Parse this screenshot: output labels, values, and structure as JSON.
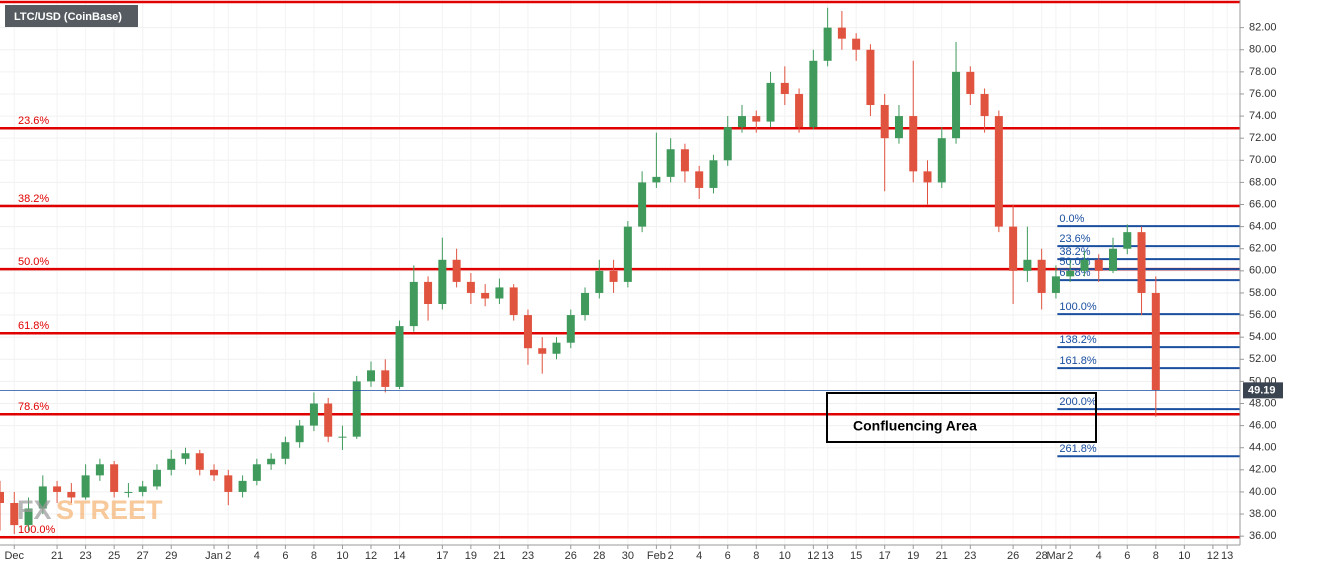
{
  "chart_data": {
    "type": "candlestick",
    "title": "LTC/USD (CoinBase)",
    "logo": {
      "fx": "FX",
      "street": "STREET"
    },
    "annotation": "Confluencing Area",
    "up_color": "#3f9a5c",
    "down_color": "#e0533f",
    "grid": true,
    "xlim": [
      -4,
      82.9
    ],
    "ylim": [
      35.2,
      84.5
    ],
    "xticks": [
      {
        "value": -3,
        "label": "Dec"
      },
      {
        "value": 0,
        "label": "21"
      },
      {
        "value": 2,
        "label": "23"
      },
      {
        "value": 4,
        "label": "25"
      },
      {
        "value": 6,
        "label": "27"
      },
      {
        "value": 8,
        "label": "29"
      },
      {
        "value": 11,
        "label": "Jan"
      },
      {
        "value": 12,
        "label": "2"
      },
      {
        "value": 14,
        "label": "4"
      },
      {
        "value": 16,
        "label": "6"
      },
      {
        "value": 18,
        "label": "8"
      },
      {
        "value": 20,
        "label": "10"
      },
      {
        "value": 22,
        "label": "12"
      },
      {
        "value": 24,
        "label": "14"
      },
      {
        "value": 27,
        "label": "17"
      },
      {
        "value": 29,
        "label": "19"
      },
      {
        "value": 31,
        "label": "21"
      },
      {
        "value": 33,
        "label": "23"
      },
      {
        "value": 36,
        "label": "26"
      },
      {
        "value": 38,
        "label": "28"
      },
      {
        "value": 40,
        "label": "30"
      },
      {
        "value": 42,
        "label": "Feb"
      },
      {
        "value": 43,
        "label": "2"
      },
      {
        "value": 45,
        "label": "4"
      },
      {
        "value": 47,
        "label": "6"
      },
      {
        "value": 49,
        "label": "8"
      },
      {
        "value": 51,
        "label": "10"
      },
      {
        "value": 53,
        "label": "12"
      },
      {
        "value": 54,
        "label": "13"
      },
      {
        "value": 56,
        "label": "15"
      },
      {
        "value": 58,
        "label": "17"
      },
      {
        "value": 60,
        "label": "19"
      },
      {
        "value": 62,
        "label": "21"
      },
      {
        "value": 64,
        "label": "23"
      },
      {
        "value": 67,
        "label": "26"
      },
      {
        "value": 69,
        "label": "28"
      },
      {
        "value": 70,
        "label": "Mar"
      },
      {
        "value": 71,
        "label": "2"
      },
      {
        "value": 73,
        "label": "4"
      },
      {
        "value": 75,
        "label": "6"
      },
      {
        "value": 77,
        "label": "8"
      },
      {
        "value": 79,
        "label": "10"
      },
      {
        "value": 81,
        "label": "12"
      },
      {
        "value": 82,
        "label": "13"
      }
    ],
    "yticks": [
      {
        "value": 36,
        "label": "36.00"
      },
      {
        "value": 38,
        "label": "38.00"
      },
      {
        "value": 40,
        "label": "40.00"
      },
      {
        "value": 42,
        "label": "42.00"
      },
      {
        "value": 44,
        "label": "44.00"
      },
      {
        "value": 46,
        "label": "46.00"
      },
      {
        "value": 48,
        "label": "48.00"
      },
      {
        "value": 50,
        "label": "50.00"
      },
      {
        "value": 52,
        "label": "52.00"
      },
      {
        "value": 54,
        "label": "54.00"
      },
      {
        "value": 56,
        "label": "56.00"
      },
      {
        "value": 58,
        "label": "58.00"
      },
      {
        "value": 60,
        "label": "60.00"
      },
      {
        "value": 62,
        "label": "62.00"
      },
      {
        "value": 64,
        "label": "64.00"
      },
      {
        "value": 66,
        "label": "66.00"
      },
      {
        "value": 68,
        "label": "68.00"
      },
      {
        "value": 70,
        "label": "70.00"
      },
      {
        "value": 72,
        "label": "72.00"
      },
      {
        "value": 74,
        "label": "74.00"
      },
      {
        "value": 76,
        "label": "76.00"
      },
      {
        "value": 78,
        "label": "78.00"
      },
      {
        "value": 80,
        "label": "80.00"
      },
      {
        "value": 82,
        "label": "82.00"
      }
    ],
    "x": [
      -4,
      -3,
      -2,
      -1,
      0,
      1,
      2,
      3,
      4,
      5,
      6,
      7,
      8,
      9,
      10,
      11,
      12,
      13,
      14,
      15,
      16,
      17,
      18,
      19,
      20,
      21,
      22,
      23,
      24,
      25,
      26,
      27,
      28,
      29,
      30,
      31,
      32,
      33,
      34,
      35,
      36,
      37,
      38,
      39,
      40,
      41,
      42,
      43,
      44,
      45,
      46,
      47,
      48,
      49,
      50,
      51,
      52,
      53,
      54,
      55,
      56,
      57,
      58,
      59,
      60,
      61,
      62,
      63,
      64,
      65,
      66,
      67,
      68,
      69,
      70,
      71,
      72,
      73,
      74,
      75,
      76,
      77
    ],
    "open": [
      40,
      39,
      37,
      38.5,
      40.5,
      40,
      39.5,
      41.5,
      42.5,
      40,
      40,
      40.5,
      42,
      43,
      43.5,
      42,
      41.5,
      40,
      41,
      42.5,
      43,
      44.5,
      46,
      48,
      45,
      45,
      50,
      51,
      49.5,
      55,
      59,
      57,
      61,
      59,
      58,
      57.5,
      58.5,
      56,
      53,
      52.5,
      53.5,
      56,
      58,
      60,
      59,
      64,
      68,
      68.5,
      71,
      69,
      67.5,
      70,
      73,
      74,
      73.5,
      77,
      76,
      73,
      79,
      82,
      81,
      80,
      75,
      72,
      74,
      69,
      68,
      72,
      78,
      76,
      74,
      64,
      60,
      61,
      58,
      59.5,
      60,
      61,
      60,
      62,
      63.5,
      58
    ],
    "high": [
      41,
      40,
      39.5,
      41.5,
      41,
      40.8,
      42.5,
      43,
      42.8,
      40.8,
      41,
      42.5,
      43.8,
      44,
      43.8,
      42.5,
      42,
      41.5,
      43,
      43.5,
      45,
      46.5,
      49,
      48.5,
      46,
      50.5,
      51.8,
      52,
      55.5,
      60.5,
      59.5,
      63,
      62,
      59.8,
      58.8,
      59.3,
      58.8,
      56.5,
      54,
      54,
      56.5,
      58.5,
      61,
      61,
      64.5,
      69,
      72.5,
      72,
      71.5,
      69.5,
      70.5,
      74,
      75,
      74.5,
      78,
      78.5,
      76.5,
      80,
      83.8,
      83.5,
      81.5,
      80.5,
      76,
      75,
      79,
      70,
      73,
      80.7,
      78.5,
      76.5,
      74.5,
      66,
      64,
      62,
      60.5,
      61,
      61.8,
      61.5,
      63,
      64.2,
      64,
      59.5
    ],
    "low": [
      36.5,
      36.2,
      36.5,
      38,
      39,
      39,
      39.3,
      41,
      39.5,
      39.5,
      39.6,
      40.2,
      41.5,
      42.5,
      41.5,
      41,
      38.8,
      39.5,
      40.6,
      42,
      42.5,
      44,
      45.5,
      44.5,
      43.8,
      44.8,
      49.5,
      49,
      49.3,
      54.5,
      55.5,
      56.5,
      58.5,
      57,
      56.8,
      57,
      55.5,
      51.5,
      50.7,
      52,
      53,
      55.5,
      57.5,
      58,
      58.5,
      63.5,
      67.5,
      68,
      68,
      66.5,
      67,
      69.5,
      72.5,
      72.5,
      73,
      75,
      72.5,
      72.8,
      78.5,
      80,
      79,
      74,
      67.2,
      71.5,
      68,
      66,
      67.5,
      71.5,
      75,
      72.5,
      63.5,
      57,
      59,
      56.5,
      57.5,
      59,
      59.5,
      59,
      59.8,
      61.5,
      56,
      46.8
    ],
    "close": [
      39,
      37,
      38.5,
      40.5,
      40,
      39.5,
      41.5,
      42.5,
      40,
      40,
      40.5,
      42,
      43,
      43.5,
      42,
      41.5,
      40,
      41,
      42.5,
      43,
      44.5,
      46,
      48,
      45,
      45,
      50,
      51,
      49.5,
      55,
      59,
      57,
      61,
      59,
      58,
      57.5,
      58.5,
      56,
      53,
      52.5,
      53.5,
      56,
      58,
      60,
      59,
      64,
      68,
      68.5,
      71,
      69,
      67.5,
      70,
      73,
      74,
      73.5,
      77,
      76,
      73,
      79,
      82,
      81,
      80,
      75,
      72,
      74,
      69,
      68,
      72,
      78,
      76,
      74,
      64,
      60,
      61,
      58,
      59.5,
      60,
      61,
      60,
      62,
      63.5,
      58,
      49.19
    ],
    "last_price": 49.19,
    "fib_left": {
      "color": "#e00000",
      "levels": [
        {
          "value": 84.32
        },
        {
          "label": "23.6%",
          "value": 72.9
        },
        {
          "label": "38.2%",
          "value": 65.86
        },
        {
          "label": "50.0%",
          "value": 60.16
        },
        {
          "label": "61.8%",
          "value": 54.36
        },
        {
          "label": "78.6%",
          "value": 47.03
        },
        {
          "label": "100.0%",
          "value": 35.9
        }
      ]
    },
    "fib_right": {
      "color": "#1a4fa0",
      "start": 70.1,
      "levels": [
        {
          "label": "0.0%",
          "value": 64.05
        },
        {
          "label": "23.6%",
          "value": 62.24
        },
        {
          "label": "38.2%",
          "value": 61.06
        },
        {
          "label": "50.0%",
          "value": 60.16
        },
        {
          "label": "61.8%",
          "value": 59.16
        },
        {
          "label": "100.0%",
          "value": 56.08
        },
        {
          "label": "138.2%",
          "value": 53.1
        },
        {
          "label": "161.8%",
          "value": 51.2
        },
        {
          "label": "200.0%",
          "value": 47.49
        },
        {
          "label": "261.8%",
          "value": 43.23
        }
      ]
    }
  }
}
